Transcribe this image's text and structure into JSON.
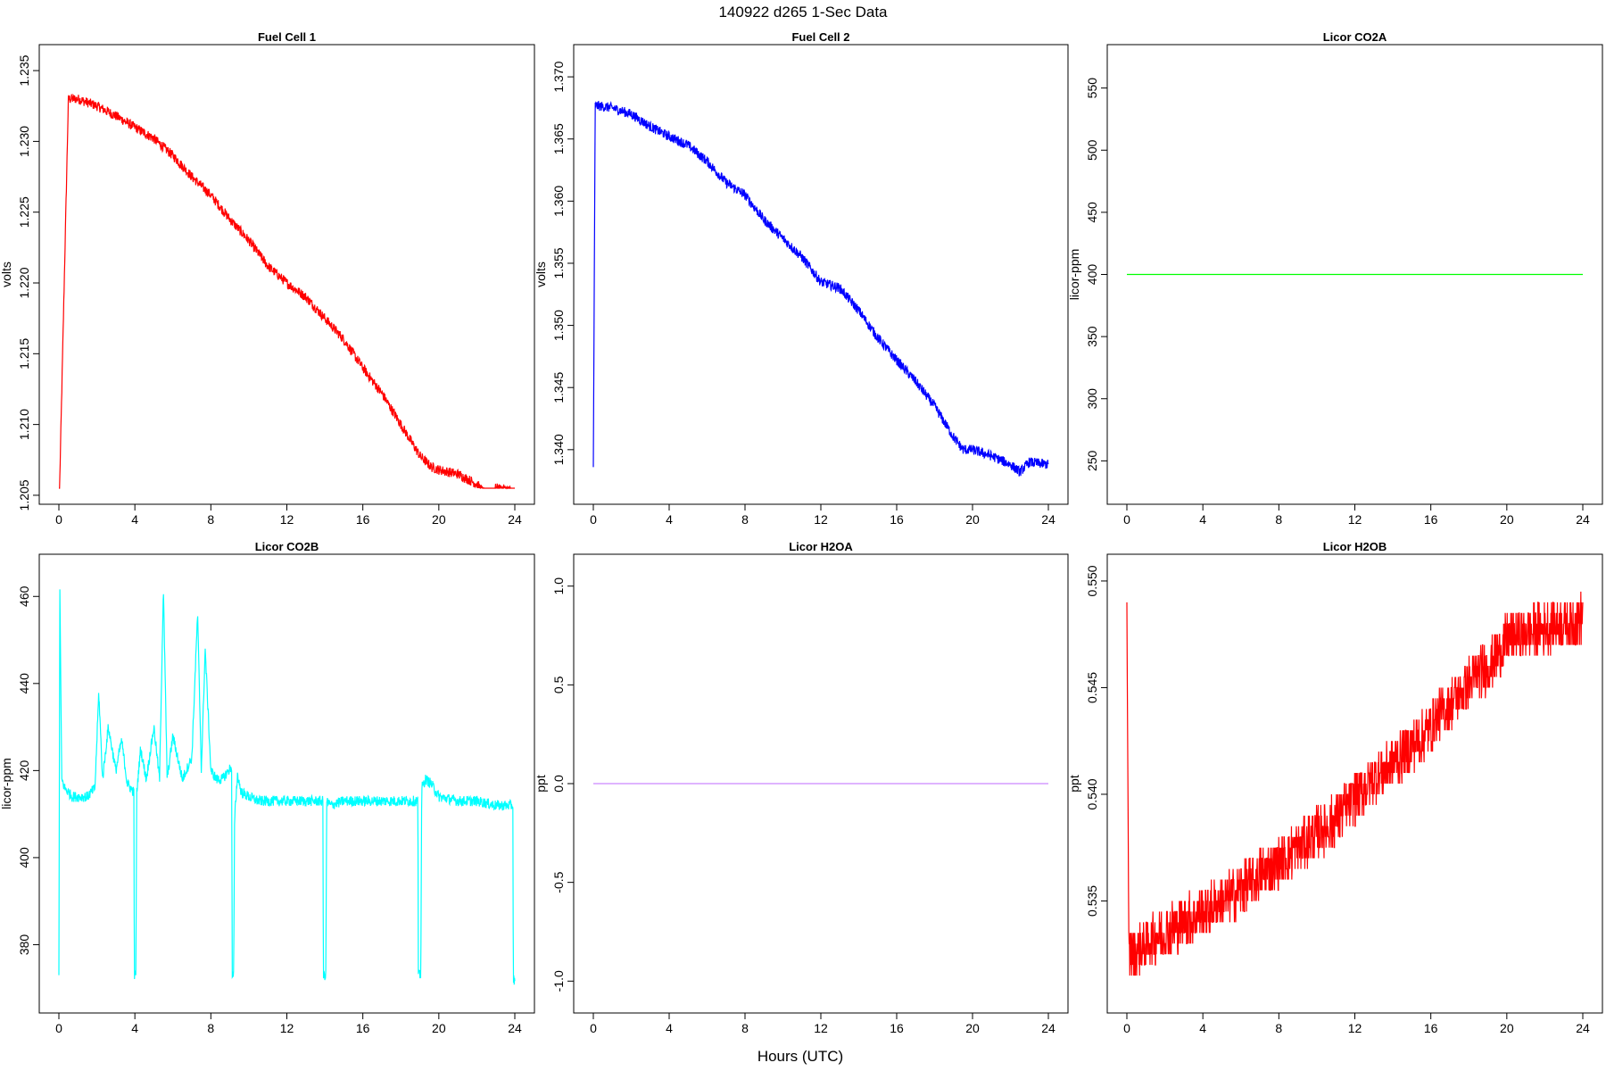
{
  "figure": {
    "title": "140922   d265   1-Sec Data",
    "xlabel": "Hours (UTC)"
  },
  "chart_data": [
    {
      "type": "line",
      "title": "Fuel Cell 1",
      "ylabel": "volts",
      "color": "#ff0000",
      "xlim": [
        0,
        24
      ],
      "ylim": [
        1.2055,
        1.2357
      ],
      "xticks": [
        0,
        4,
        8,
        12,
        16,
        20,
        24
      ],
      "yticks": [
        1.205,
        1.21,
        1.215,
        1.22,
        1.225,
        1.23,
        1.235
      ],
      "ytick_labels": [
        "1.205",
        "1.210",
        "1.215",
        "1.220",
        "1.225",
        "1.230",
        "1.235"
      ],
      "noise": 0.00035,
      "series": [
        {
          "x": [
            0,
            0.5,
            1,
            2,
            3,
            4,
            5,
            6,
            7,
            8,
            9,
            10,
            11,
            12,
            13,
            14,
            15,
            16,
            17,
            18,
            19,
            19.6,
            20,
            21,
            22,
            22.5,
            23,
            24
          ],
          "y": [
            1.2033,
            1.233,
            1.233,
            1.2325,
            1.2318,
            1.231,
            1.2302,
            1.229,
            1.2275,
            1.2262,
            1.2245,
            1.223,
            1.2212,
            1.22,
            1.219,
            1.2175,
            1.216,
            1.214,
            1.2122,
            1.21,
            1.2078,
            1.207,
            1.2068,
            1.2065,
            1.2058,
            1.205,
            1.2055,
            1.2053
          ]
        }
      ]
    },
    {
      "type": "line",
      "title": "Fuel Cell 2",
      "ylabel": "volts",
      "color": "#0000ff",
      "xlim": [
        0,
        24
      ],
      "ylim": [
        1.3369,
        1.3713
      ],
      "xticks": [
        0,
        4,
        8,
        12,
        16,
        20,
        24
      ],
      "yticks": [
        1.34,
        1.345,
        1.35,
        1.355,
        1.36,
        1.365,
        1.37
      ],
      "ytick_labels": [
        "1.340",
        "1.345",
        "1.350",
        "1.355",
        "1.360",
        "1.365",
        "1.370"
      ],
      "noise": 0.0004,
      "series": [
        {
          "x": [
            0,
            0.1,
            1,
            2,
            3,
            4,
            5,
            6,
            7,
            8,
            9,
            10,
            11,
            12,
            13,
            14,
            15,
            16,
            17,
            18,
            19,
            19.5,
            20,
            21,
            22,
            22.5,
            23,
            24
          ],
          "y": [
            1.3386,
            1.3677,
            1.3675,
            1.367,
            1.366,
            1.3652,
            1.3645,
            1.3632,
            1.3615,
            1.3605,
            1.3585,
            1.357,
            1.3555,
            1.3535,
            1.353,
            1.3512,
            1.349,
            1.3472,
            1.3455,
            1.3435,
            1.341,
            1.34,
            1.34,
            1.3395,
            1.3388,
            1.3382,
            1.339,
            1.3388
          ]
        }
      ]
    },
    {
      "type": "line",
      "title": "Licor CO2A",
      "ylabel": "licor-ppm",
      "color": "#00ff00",
      "xlim": [
        0,
        24
      ],
      "ylim": [
        228,
        572
      ],
      "xticks": [
        0,
        4,
        8,
        12,
        16,
        20,
        24
      ],
      "yticks": [
        250,
        300,
        350,
        400,
        450,
        500,
        550
      ],
      "ytick_labels": [
        "250",
        "300",
        "350",
        "400",
        "450",
        "500",
        "550"
      ],
      "noise": 0,
      "series": [
        {
          "x": [
            0,
            24
          ],
          "y": [
            400,
            400
          ]
        }
      ]
    },
    {
      "type": "line",
      "title": "Licor CO2B",
      "ylabel": "licor-ppm",
      "color": "#00ffff",
      "xlim": [
        0,
        24
      ],
      "ylim": [
        368,
        466
      ],
      "xticks": [
        0,
        4,
        8,
        12,
        16,
        20,
        24
      ],
      "yticks": [
        380,
        400,
        420,
        440,
        460
      ],
      "ytick_labels": [
        "380",
        "400",
        "420",
        "440",
        "460"
      ],
      "noise": 1.2,
      "series": [
        {
          "x": [
            0,
            0.05,
            0.1,
            0.15,
            0.3,
            0.5,
            0.7,
            1,
            1.5,
            1.9,
            2.1,
            2.3,
            2.6,
            3,
            3.3,
            3.6,
            3.95,
            3.97,
            4.05,
            4.1,
            4.3,
            4.6,
            5,
            5.3,
            5.5,
            5.7,
            6,
            6.5,
            7,
            7.3,
            7.5,
            7.7,
            8,
            8.3,
            8.6,
            9.1,
            9.12,
            9.2,
            9.25,
            9.4,
            9.6,
            10,
            10.5,
            11,
            12,
            13,
            13.9,
            13.92,
            14.05,
            14.1,
            14.3,
            15,
            16,
            17,
            18,
            18.9,
            18.92,
            19.05,
            19.1,
            19.3,
            19.6,
            20,
            21,
            22,
            23,
            23.9,
            23.92,
            24
          ],
          "y": [
            373,
            463,
            440,
            418,
            416,
            415,
            414,
            414,
            414,
            416,
            438,
            418,
            430,
            420,
            427,
            417,
            415,
            373,
            373,
            415,
            425,
            418,
            430,
            418,
            462,
            418,
            428,
            418,
            423,
            456,
            420,
            448,
            420,
            418,
            418,
            421,
            373,
            373,
            409,
            419,
            415,
            414,
            413,
            413,
            413,
            413,
            413,
            373,
            373,
            413,
            412,
            413,
            413,
            413,
            413,
            413,
            373,
            373,
            416,
            418,
            417,
            414,
            413,
            413,
            412,
            412,
            372,
            372
          ]
        }
      ]
    },
    {
      "type": "line",
      "title": "Licor H2OA",
      "ylabel": "ppt",
      "color": "#cc88ff",
      "xlim": [
        0,
        24
      ],
      "ylim": [
        -1.08,
        1.08
      ],
      "xticks": [
        0,
        4,
        8,
        12,
        16,
        20,
        24
      ],
      "yticks": [
        -1,
        -0.5,
        0,
        0.5,
        1
      ],
      "ytick_labels": [
        "-1.0",
        "-0.5",
        "0.0",
        "0.5",
        "1.0"
      ],
      "noise": 0,
      "series": [
        {
          "x": [
            0,
            24
          ],
          "y": [
            0,
            0
          ]
        }
      ]
    },
    {
      "type": "line",
      "title": "Licor H2OB",
      "ylabel": "ppt",
      "color": "#ff0000",
      "xlim": [
        0,
        24
      ],
      "ylim": [
        0.5305,
        0.5505
      ],
      "xticks": [
        0,
        4,
        8,
        12,
        16,
        20,
        24
      ],
      "yticks": [
        0.535,
        0.54,
        0.545,
        0.55
      ],
      "ytick_labels": [
        "0.535",
        "0.540",
        "0.545",
        "0.550"
      ],
      "noise": 0.0012,
      "quantize": 0.0005,
      "series": [
        {
          "x": [
            0,
            0.1,
            1,
            2,
            3,
            4,
            5,
            6,
            7,
            8,
            9,
            10,
            11,
            12,
            13,
            14,
            15,
            16,
            17,
            18,
            19,
            20,
            21,
            22,
            23,
            24
          ],
          "y": [
            0.549,
            0.5325,
            0.533,
            0.5335,
            0.534,
            0.5345,
            0.535,
            0.5355,
            0.5362,
            0.5368,
            0.5375,
            0.5382,
            0.5388,
            0.5398,
            0.5408,
            0.5415,
            0.5422,
            0.5432,
            0.5442,
            0.5452,
            0.546,
            0.5472,
            0.5476,
            0.5478,
            0.548,
            0.5482
          ]
        }
      ]
    }
  ]
}
